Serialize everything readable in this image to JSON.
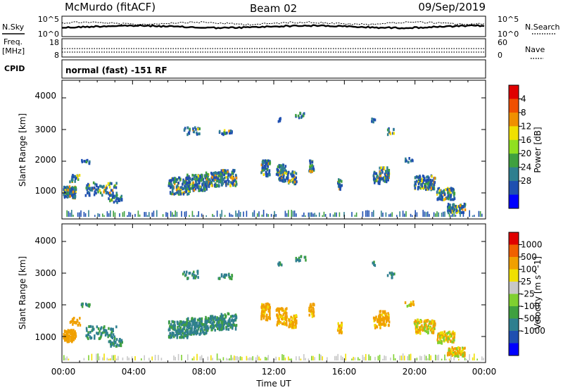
{
  "header": {
    "title": "McMurdo (fitACF)",
    "beam": "Beam 02",
    "date": "09/Sep/2019"
  },
  "noise_panel": {
    "left_label": "N.Sky",
    "left_top_tick": "10^5",
    "left_bottom_tick": "10^0",
    "right_label": "N.Search",
    "right_top_tick": "10^5",
    "right_bottom_tick": "10^0"
  },
  "freq_panel": {
    "left_label_1": "Freq.",
    "left_label_2": "[MHz]",
    "left_top_tick": "18",
    "left_bottom_tick": "8",
    "right_label": "Nave",
    "right_top_tick": "60",
    "right_bottom_tick": "0"
  },
  "cpid": {
    "label": "CPID",
    "text": "normal (fast) -151 RF"
  },
  "x_axis": {
    "label": "Time UT",
    "ticks": [
      "00:00",
      "04:00",
      "08:00",
      "12:00",
      "16:00",
      "20:00",
      "00:00"
    ]
  },
  "chart_data": [
    {
      "type": "heatmap",
      "name": "Power",
      "ylabel": "Slant Range [km]",
      "yticks": [
        "1000",
        "2000",
        "3000",
        "4000"
      ],
      "ylim": [
        180,
        4500
      ],
      "xlim_hours": [
        0,
        24
      ],
      "colorbar": {
        "label": "Power [dB]",
        "ticks": [
          "4",
          "8",
          "12",
          "16",
          "20",
          "24",
          "28"
        ],
        "range": [
          0,
          30
        ],
        "colors": [
          "#0000ff",
          "#1f4fb0",
          "#2f7f8f",
          "#3fa040",
          "#90e020",
          "#f0e000",
          "#f09000",
          "#f05000",
          "#e00000"
        ]
      }
    },
    {
      "type": "heatmap",
      "name": "Velocity",
      "ylabel": "Slant Range [km]",
      "yticks": [
        "1000",
        "2000",
        "3000",
        "4000"
      ],
      "ylim": [
        180,
        4500
      ],
      "xlim_hours": [
        0,
        24
      ],
      "colorbar": {
        "label": "Velocity [m s^-1]",
        "ticks": [
          "1000",
          "500",
          "100",
          "25",
          "-25",
          "-100",
          "-500",
          "-1000"
        ],
        "colors": [
          "#0000ff",
          "#1f4fb0",
          "#2f7f8f",
          "#3fa040",
          "#7fd030",
          "#c8c8c8",
          "#f0e000",
          "#f0a000",
          "#f06000",
          "#e00000"
        ]
      }
    }
  ]
}
